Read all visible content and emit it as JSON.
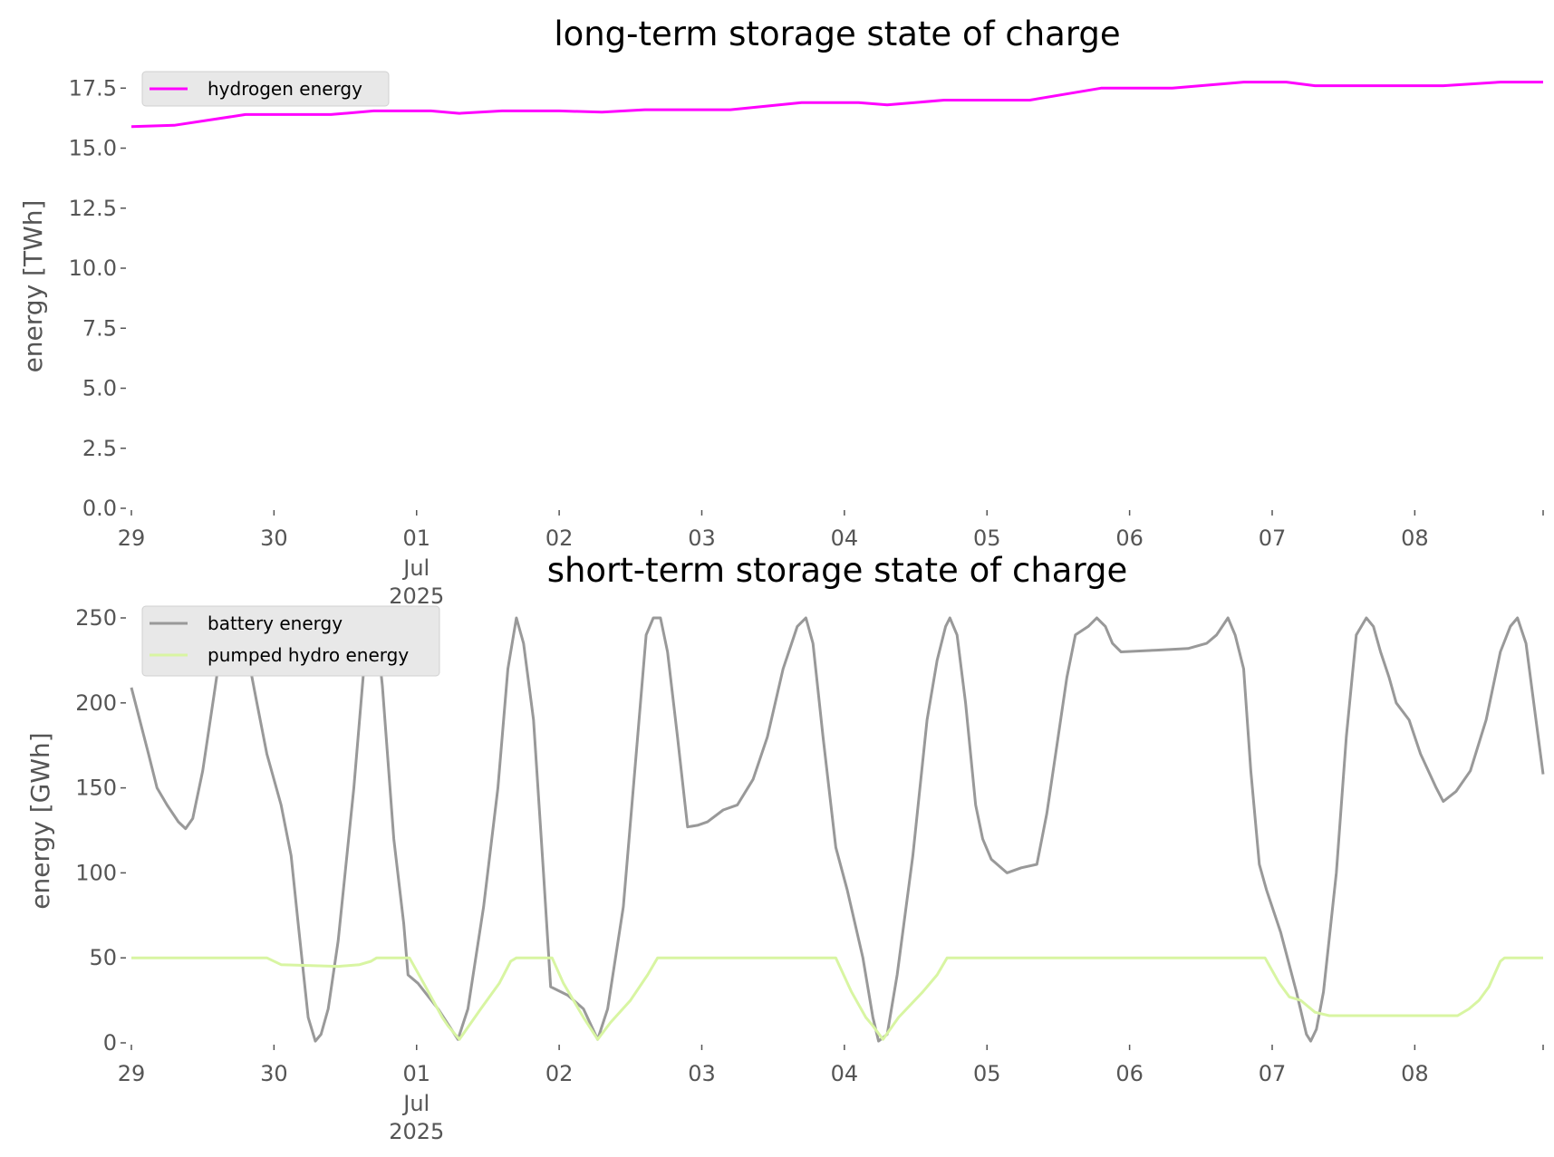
{
  "chart_data": [
    {
      "type": "line",
      "title": "long-term storage state of charge",
      "xlabel": "",
      "ylabel": "energy [TWh]",
      "x_unit": "days since 29 Jun 2025 00:00",
      "xlim": [
        0,
        9.9
      ],
      "ylim": [
        0,
        18
      ],
      "yticks": [
        "0.0",
        "2.5",
        "5.0",
        "7.5",
        "10.0",
        "12.5",
        "15.0",
        "17.5"
      ],
      "ytick_values": [
        0,
        2.5,
        5,
        7.5,
        10,
        12.5,
        15,
        17.5
      ],
      "xticks": [
        "29",
        "30",
        "01",
        "02",
        "03",
        "04",
        "05",
        "06",
        "07",
        "08",
        ""
      ],
      "xtick_values": [
        0,
        1,
        2,
        3,
        4,
        5,
        6,
        7,
        8,
        9,
        10
      ],
      "xtick_sublabels": [
        "Jul",
        "2025"
      ],
      "legend": "top-left",
      "grid": false,
      "series": [
        {
          "name": "hydrogen energy",
          "color": "#ff00ff",
          "x": [
            0,
            0.3,
            0.8,
            1.4,
            1.7,
            2.1,
            2.3,
            2.6,
            3.0,
            3.3,
            3.6,
            4.2,
            4.7,
            5.1,
            5.3,
            5.7,
            6.3,
            6.8,
            7.3,
            7.8,
            8.1,
            8.3,
            9.2,
            9.6,
            9.9
          ],
          "y": [
            15.9,
            15.95,
            16.4,
            16.4,
            16.55,
            16.55,
            16.45,
            16.55,
            16.55,
            16.5,
            16.6,
            16.6,
            16.9,
            16.9,
            16.8,
            17.0,
            17.0,
            17.5,
            17.5,
            17.75,
            17.75,
            17.6,
            17.6,
            17.75,
            17.75
          ]
        }
      ]
    },
    {
      "type": "line",
      "title": "short-term storage state of charge",
      "xlabel": "",
      "ylabel": "energy [GWh]",
      "x_unit": "days since 29 Jun 2025 00:00",
      "xlim": [
        0,
        9.9
      ],
      "ylim": [
        0,
        250
      ],
      "yticks": [
        "0",
        "50",
        "100",
        "150",
        "200",
        "250"
      ],
      "ytick_values": [
        0,
        50,
        100,
        150,
        200,
        250
      ],
      "xticks": [
        "29",
        "30",
        "01",
        "02",
        "03",
        "04",
        "05",
        "06",
        "07",
        "08",
        ""
      ],
      "xtick_values": [
        0,
        1,
        2,
        3,
        4,
        5,
        6,
        7,
        8,
        9,
        10
      ],
      "xtick_sublabels": [
        "Jul",
        "2025"
      ],
      "legend": "top-left",
      "grid": false,
      "series": [
        {
          "name": "battery energy",
          "color": "#999999",
          "x": [
            0,
            0.12,
            0.18,
            0.25,
            0.33,
            0.38,
            0.43,
            0.5,
            0.58,
            0.65,
            0.69,
            0.75,
            0.8,
            0.88,
            0.95,
            1.05,
            1.12,
            1.17,
            1.24,
            1.29,
            1.33,
            1.38,
            1.45,
            1.56,
            1.64,
            1.71,
            1.76,
            1.84,
            1.91,
            1.94,
            2.01,
            2.15,
            2.29,
            2.36,
            2.47,
            2.57,
            2.64,
            2.7,
            2.75,
            2.82,
            2.89,
            2.92,
            2.94,
            3.06,
            3.17,
            3.27,
            3.34,
            3.45,
            3.55,
            3.61,
            3.66,
            3.71,
            3.76,
            3.83,
            3.9,
            3.97,
            4.04,
            4.15,
            4.25,
            4.36,
            4.46,
            4.57,
            4.67,
            4.73,
            4.78,
            4.85,
            4.94,
            5.02,
            5.13,
            5.2,
            5.24,
            5.3,
            5.37,
            5.48,
            5.58,
            5.65,
            5.71,
            5.74,
            5.79,
            5.85,
            5.92,
            5.97,
            6.03,
            6.14,
            6.24,
            6.35,
            6.42,
            6.49,
            6.56,
            6.62,
            6.71,
            6.77,
            6.83,
            6.88,
            6.94,
            7.19,
            7.41,
            7.54,
            7.61,
            7.69,
            7.74,
            7.8,
            7.85,
            7.91,
            7.96,
            8.06,
            8.17,
            8.24,
            8.27,
            8.31,
            8.36,
            8.45,
            8.52,
            8.59,
            8.66,
            8.71,
            8.76,
            8.82,
            8.87,
            8.96,
            9.04,
            9.15,
            9.2,
            9.29,
            9.39,
            9.5,
            9.6,
            9.67,
            9.72,
            9.78,
            9.85,
            9.9
          ],
          "y": [
            209,
            170,
            150,
            140,
            130,
            126,
            132,
            160,
            205,
            245,
            250,
            250,
            235,
            200,
            170,
            140,
            110,
            70,
            15,
            1,
            5,
            20,
            60,
            150,
            230,
            250,
            210,
            120,
            70,
            40,
            35,
            20,
            2,
            20,
            80,
            150,
            220,
            250,
            235,
            190,
            100,
            60,
            33,
            28,
            20,
            2,
            20,
            80,
            180,
            240,
            250,
            250,
            230,
            180,
            127,
            128,
            130,
            137,
            140,
            155,
            180,
            220,
            245,
            250,
            235,
            180,
            115,
            90,
            50,
            15,
            1,
            5,
            40,
            110,
            190,
            225,
            245,
            250,
            240,
            200,
            140,
            120,
            108,
            100,
            103,
            105,
            135,
            175,
            215,
            240,
            245,
            250,
            245,
            235,
            230,
            231,
            232,
            235,
            240,
            250,
            240,
            220,
            160,
            105,
            90,
            65,
            30,
            5,
            1,
            8,
            30,
            100,
            180,
            240,
            250,
            245,
            230,
            215,
            200,
            190,
            170,
            150,
            142,
            148,
            160,
            190,
            230,
            245,
            250,
            235,
            190,
            158
          ]
        },
        {
          "name": "pumped hydro energy",
          "color": "#d8f5a2",
          "x": [
            0,
            0.95,
            1.05,
            1.45,
            1.6,
            1.68,
            1.72,
            1.95,
            2.05,
            2.18,
            2.22,
            2.3,
            2.45,
            2.58,
            2.66,
            2.7,
            2.95,
            3.03,
            3.17,
            3.27,
            3.36,
            3.5,
            3.62,
            3.69,
            4.94,
            5.05,
            5.15,
            5.2,
            5.27,
            5.38,
            5.55,
            5.65,
            5.72,
            7.95,
            8.05,
            8.12,
            8.2,
            8.3,
            8.4,
            9.3,
            9.38,
            9.45,
            9.52,
            9.6,
            9.63,
            9.9
          ],
          "y": [
            50,
            50,
            46,
            45,
            46,
            48,
            50,
            50,
            35,
            15,
            10,
            2,
            20,
            35,
            48,
            50,
            50,
            35,
            15,
            2,
            12,
            25,
            40,
            50,
            50,
            30,
            15,
            10,
            2,
            15,
            30,
            40,
            50,
            50,
            35,
            27,
            25,
            18,
            16,
            16,
            20,
            25,
            33,
            48,
            50,
            50
          ]
        }
      ]
    }
  ]
}
